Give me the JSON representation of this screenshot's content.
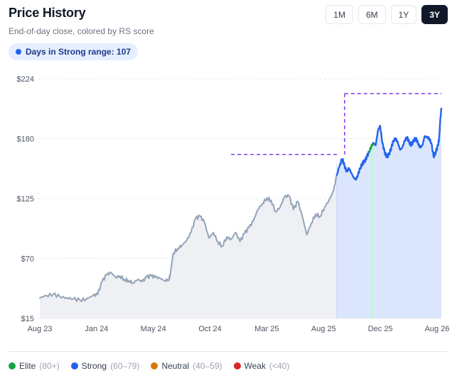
{
  "header": {
    "title": "Price History",
    "subtitle": "End-of-day close, colored by RS score"
  },
  "range_buttons": [
    {
      "label": "1M",
      "active": false
    },
    {
      "label": "6M",
      "active": false
    },
    {
      "label": "1Y",
      "active": false
    },
    {
      "label": "3Y",
      "active": true
    }
  ],
  "badge": {
    "text": "Days in Strong range: 107",
    "color": "#2563eb"
  },
  "colors": {
    "base_line": "#94a3b8",
    "base_fill": "#eef0f4",
    "strong_fill": "#dbe6fd",
    "elite": "#16a34a",
    "strong": "#2563eb",
    "neutral": "#d97706",
    "weak": "#dc2626",
    "reference_line": "#7c3aed",
    "grid": "#e5e7eb"
  },
  "legend": [
    {
      "label": "Elite",
      "range": "(80+)",
      "color": "#16a34a"
    },
    {
      "label": "Strong",
      "range": "(60–79)",
      "color": "#2563eb"
    },
    {
      "label": "Neutral",
      "range": "(40–59)",
      "color": "#d97706"
    },
    {
      "label": "Weak",
      "range": "(<40)",
      "color": "#dc2626"
    }
  ],
  "chart_data": {
    "type": "line",
    "x_ticks": [
      "Aug 23",
      "Jan 24",
      "May 24",
      "Oct 24",
      "Mar 25",
      "Aug 25",
      "Dec 25",
      "Aug 26"
    ],
    "y_ticks": [
      "$224",
      "$180",
      "$125",
      "$70",
      "$15"
    ],
    "ylim": [
      15,
      224
    ],
    "grid": true,
    "series": [
      {
        "rating": "neutral",
        "values": [
          [
            0,
            33
          ],
          [
            3,
            35
          ],
          [
            6,
            36
          ],
          [
            9,
            34
          ],
          [
            12,
            33
          ],
          [
            15,
            32
          ],
          [
            18,
            31
          ],
          [
            21,
            32
          ],
          [
            24,
            35
          ],
          [
            26,
            36
          ],
          [
            28,
            47
          ],
          [
            30,
            53
          ],
          [
            32,
            55
          ],
          [
            34,
            51
          ],
          [
            36,
            52
          ],
          [
            38,
            49
          ],
          [
            40,
            48
          ],
          [
            42,
            46
          ],
          [
            44,
            49
          ],
          [
            46,
            47
          ],
          [
            48,
            51
          ],
          [
            50,
            52
          ],
          [
            52,
            51
          ],
          [
            54,
            50
          ],
          [
            56,
            48
          ],
          [
            58,
            49
          ],
          [
            58.5,
            52
          ],
          [
            60,
            72
          ],
          [
            62,
            76
          ],
          [
            64,
            79
          ],
          [
            66,
            83
          ],
          [
            68,
            90
          ],
          [
            70,
            102
          ],
          [
            72,
            104
          ],
          [
            74,
            99
          ],
          [
            76,
            85
          ],
          [
            78,
            90
          ],
          [
            80,
            82
          ],
          [
            82,
            78
          ],
          [
            84,
            86
          ],
          [
            86,
            84
          ],
          [
            88,
            90
          ],
          [
            90,
            82
          ],
          [
            92,
            89
          ],
          [
            94,
            94
          ],
          [
            96,
            100
          ],
          [
            98,
            110
          ],
          [
            100,
            115
          ],
          [
            102,
            120
          ],
          [
            104,
            118
          ],
          [
            106,
            108
          ],
          [
            108,
            112
          ],
          [
            110,
            121
          ],
          [
            112,
            122
          ],
          [
            114,
            110
          ],
          [
            116,
            117
          ],
          [
            118,
            104
          ],
          [
            120,
            88
          ],
          [
            122,
            98
          ],
          [
            124,
            106
          ],
          [
            126,
            104
          ],
          [
            128,
            112
          ],
          [
            130,
            118
          ],
          [
            132,
            126
          ],
          [
            133.5,
            140
          ]
        ]
      },
      {
        "rating": "strong",
        "values": [
          [
            133.5,
            140
          ],
          [
            135,
            150
          ],
          [
            136,
            154
          ],
          [
            137,
            148
          ],
          [
            138,
            143
          ],
          [
            139,
            146
          ],
          [
            140,
            142
          ],
          [
            141,
            138
          ],
          [
            142,
            136
          ],
          [
            143,
            140
          ],
          [
            144,
            146
          ],
          [
            145,
            150
          ],
          [
            146,
            152
          ],
          [
            147,
            156
          ],
          [
            148,
            160
          ]
        ]
      },
      {
        "rating": "elite",
        "values": [
          [
            148,
            160
          ],
          [
            149,
            165
          ],
          [
            150,
            168
          ]
        ]
      },
      {
        "rating": "strong",
        "values": [
          [
            150,
            168
          ],
          [
            151,
            166
          ],
          [
            152,
            179
          ],
          [
            153,
            183
          ],
          [
            154,
            168
          ],
          [
            155,
            160
          ],
          [
            156,
            156
          ],
          [
            157,
            158
          ],
          [
            158,
            164
          ],
          [
            159,
            170
          ],
          [
            160,
            172
          ],
          [
            161,
            168
          ],
          [
            162,
            162
          ],
          [
            163,
            164
          ],
          [
            164,
            170
          ],
          [
            165,
            173
          ],
          [
            166,
            169
          ],
          [
            167,
            166
          ],
          [
            168,
            170
          ],
          [
            169,
            172
          ],
          [
            170,
            168
          ],
          [
            171,
            164
          ],
          [
            172,
            166
          ],
          [
            173,
            174
          ],
          [
            174,
            173
          ],
          [
            175,
            172
          ],
          [
            176,
            168
          ],
          [
            177,
            156
          ],
          [
            178,
            160
          ],
          [
            179,
            166
          ],
          [
            179.5,
            172
          ],
          [
            180,
            187
          ],
          [
            180.5,
            198
          ]
        ]
      }
    ],
    "strong_region": {
      "from": 133.5,
      "to": 180.5
    },
    "elite_band": {
      "from": 148,
      "to": 150
    },
    "reference_lines": [
      {
        "from": 86,
        "to": 134,
        "y": 158
      },
      {
        "from": 137,
        "to": 180.5,
        "y": 211,
        "drop_to": 158
      }
    ]
  }
}
